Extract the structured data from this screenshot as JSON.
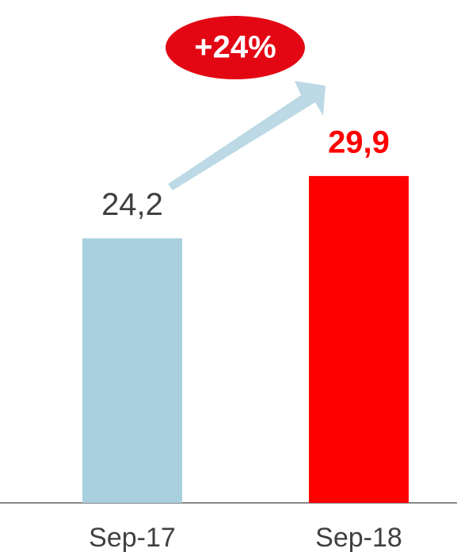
{
  "chart_data": {
    "type": "bar",
    "categories": [
      "Sep-17",
      "Sep-18"
    ],
    "values": [
      24.2,
      29.9
    ],
    "value_labels": [
      "24,2",
      "29,9"
    ],
    "colors": [
      "#a9d0de",
      "#ff0000"
    ],
    "ylim": [
      0,
      46
    ],
    "annotation": "+24%"
  }
}
